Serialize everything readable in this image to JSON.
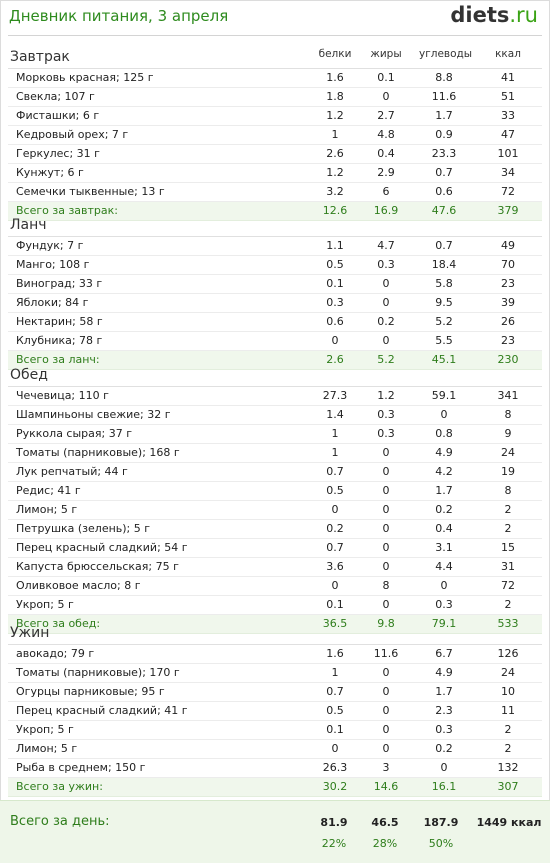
{
  "header": {
    "title": "Дневник питания, 3 апреля",
    "logo_main": "diets",
    "logo_tld": ".ru"
  },
  "columns": [
    "белки",
    "жиры",
    "углеводы",
    "ккал"
  ],
  "meals": [
    {
      "name": "Завтрак",
      "items": [
        [
          "Морковь красная; 125 г",
          "1.6",
          "0.1",
          "8.8",
          "41"
        ],
        [
          "Свекла; 107 г",
          "1.8",
          "0",
          "11.6",
          "51"
        ],
        [
          "Фисташки; 6 г",
          "1.2",
          "2.7",
          "1.7",
          "33"
        ],
        [
          "Кедровый орех; 7 г",
          "1",
          "4.8",
          "0.9",
          "47"
        ],
        [
          "Геркулес; 31 г",
          "2.6",
          "0.4",
          "23.3",
          "101"
        ],
        [
          "Кунжут; 6 г",
          "1.2",
          "2.9",
          "0.7",
          "34"
        ],
        [
          "Семечки тыквенные; 13 г",
          "3.2",
          "6",
          "0.6",
          "72"
        ]
      ],
      "total": [
        "Всего за завтрак:",
        "12.6",
        "16.9",
        "47.6",
        "379"
      ]
    },
    {
      "name": "Ланч",
      "items": [
        [
          "Фундук; 7 г",
          "1.1",
          "4.7",
          "0.7",
          "49"
        ],
        [
          "Манго; 108 г",
          "0.5",
          "0.3",
          "18.4",
          "70"
        ],
        [
          "Виноград; 33 г",
          "0.1",
          "0",
          "5.8",
          "23"
        ],
        [
          "Яблоки; 84 г",
          "0.3",
          "0",
          "9.5",
          "39"
        ],
        [
          "Нектарин; 58 г",
          "0.6",
          "0.2",
          "5.2",
          "26"
        ],
        [
          "Клубника; 78 г",
          "0",
          "0",
          "5.5",
          "23"
        ]
      ],
      "total": [
        "Всего за ланч:",
        "2.6",
        "5.2",
        "45.1",
        "230"
      ]
    },
    {
      "name": "Обед",
      "items": [
        [
          "Чечевица; 110 г",
          "27.3",
          "1.2",
          "59.1",
          "341"
        ],
        [
          "Шампиньоны свежие; 32 г",
          "1.4",
          "0.3",
          "0",
          "8"
        ],
        [
          "Руккола сырая; 37 г",
          "1",
          "0.3",
          "0.8",
          "9"
        ],
        [
          "Томаты (парниковые); 168 г",
          "1",
          "0",
          "4.9",
          "24"
        ],
        [
          "Лук репчатый; 44 г",
          "0.7",
          "0",
          "4.2",
          "19"
        ],
        [
          "Редис; 41 г",
          "0.5",
          "0",
          "1.7",
          "8"
        ],
        [
          "Лимон; 5 г",
          "0",
          "0",
          "0.2",
          "2"
        ],
        [
          "Петрушка (зелень); 5 г",
          "0.2",
          "0",
          "0.4",
          "2"
        ],
        [
          "Перец красный сладкий; 54 г",
          "0.7",
          "0",
          "3.1",
          "15"
        ],
        [
          "Капуста брюссельская; 75 г",
          "3.6",
          "0",
          "4.4",
          "31"
        ],
        [
          "Оливковое масло; 8 г",
          "0",
          "8",
          "0",
          "72"
        ],
        [
          "Укроп; 5 г",
          "0.1",
          "0",
          "0.3",
          "2"
        ]
      ],
      "total": [
        "Всего за обед:",
        "36.5",
        "9.8",
        "79.1",
        "533"
      ]
    },
    {
      "name": "Ужин",
      "items": [
        [
          "авокадо; 79 г",
          "1.6",
          "11.6",
          "6.7",
          "126"
        ],
        [
          "Томаты (парниковые); 170 г",
          "1",
          "0",
          "4.9",
          "24"
        ],
        [
          "Огурцы парниковые; 95 г",
          "0.7",
          "0",
          "1.7",
          "10"
        ],
        [
          "Перец красный сладкий; 41 г",
          "0.5",
          "0",
          "2.3",
          "11"
        ],
        [
          "Укроп; 5 г",
          "0.1",
          "0",
          "0.3",
          "2"
        ],
        [
          "Лимон; 5 г",
          "0",
          "0",
          "0.2",
          "2"
        ],
        [
          "Рыба в среднем; 150 г",
          "26.3",
          "3",
          "0",
          "132"
        ]
      ],
      "total": [
        "Всего за ужин:",
        "30.2",
        "14.6",
        "16.1",
        "307"
      ]
    }
  ],
  "day_total": {
    "label": "Всего за день:",
    "values": [
      "81.9",
      "46.5",
      "187.9",
      "1449 ккал"
    ],
    "percents": [
      "22%",
      "28%",
      "50%"
    ]
  }
}
